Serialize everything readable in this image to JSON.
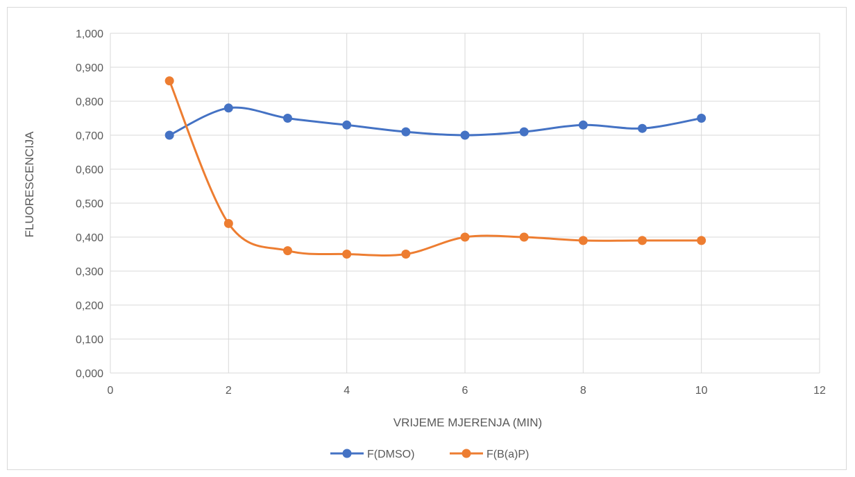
{
  "chart_data": {
    "type": "line",
    "title": "",
    "xlabel": "VRIJEME MJERENJA (MIN)",
    "ylabel": "FLUORESCENCIJA",
    "xlim": [
      0,
      12
    ],
    "ylim": [
      0,
      1
    ],
    "x_ticks": [
      0,
      2,
      4,
      6,
      8,
      10,
      12
    ],
    "x_tick_labels": [
      "0",
      "2",
      "4",
      "6",
      "8",
      "10",
      "12"
    ],
    "y_ticks": [
      0,
      0.1,
      0.2,
      0.3,
      0.4,
      0.5,
      0.6,
      0.7,
      0.8,
      0.9,
      1.0
    ],
    "y_tick_labels": [
      "0,000",
      "0,100",
      "0,200",
      "0,300",
      "0,400",
      "0,500",
      "0,600",
      "0,700",
      "0,800",
      "0,900",
      "1,000"
    ],
    "grid": true,
    "smooth": true,
    "legend_position": "bottom",
    "x": [
      1,
      2,
      3,
      4,
      5,
      6,
      7,
      8,
      9,
      10
    ],
    "series": [
      {
        "name": "F(DMSO)",
        "color": "#4472C4",
        "values": [
          0.7,
          0.78,
          0.75,
          0.73,
          0.71,
          0.7,
          0.71,
          0.73,
          0.72,
          0.75
        ]
      },
      {
        "name": "F(B(a)P)",
        "color": "#ED7D31",
        "values": [
          0.86,
          0.44,
          0.36,
          0.35,
          0.35,
          0.4,
          0.4,
          0.39,
          0.39,
          0.39
        ]
      }
    ]
  }
}
